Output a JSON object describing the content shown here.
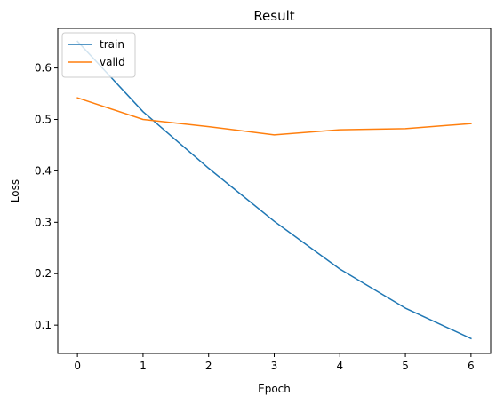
{
  "chart_data": {
    "type": "line",
    "title": "Result",
    "xlabel": "Epoch",
    "ylabel": "Loss",
    "x": [
      0,
      1,
      2,
      3,
      4,
      5,
      6
    ],
    "xticks": [
      0,
      1,
      2,
      3,
      4,
      5,
      6
    ],
    "yticks": [
      0.1,
      0.2,
      0.3,
      0.4,
      0.5,
      0.6
    ],
    "xlim": [
      -0.3,
      6.3
    ],
    "ylim": [
      0.045,
      0.677
    ],
    "grid": false,
    "legend_position": "upper left",
    "series": [
      {
        "name": "train",
        "color": "#1f77b4",
        "values": [
          0.652,
          0.515,
          0.405,
          0.302,
          0.209,
          0.133,
          0.074
        ]
      },
      {
        "name": "valid",
        "color": "#ff7f0e",
        "values": [
          0.542,
          0.5,
          0.486,
          0.47,
          0.48,
          0.482,
          0.492
        ]
      }
    ]
  }
}
